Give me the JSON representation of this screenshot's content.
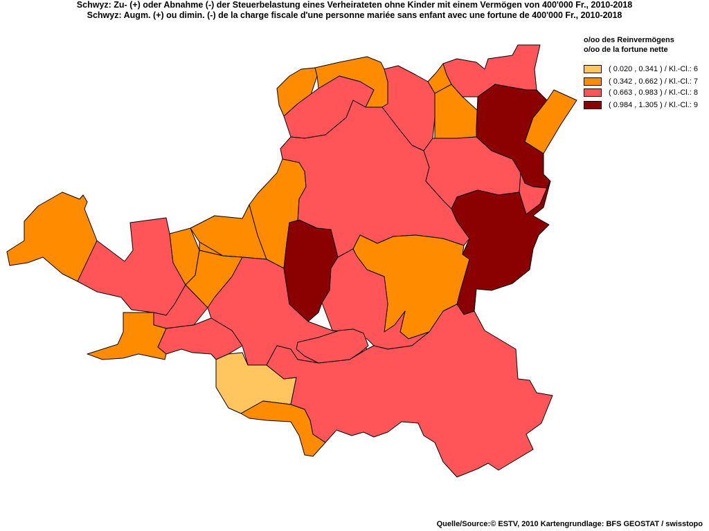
{
  "title_de": "Schwyz: Zu- (+) oder Abnahme (-) der Steuerbelastung  eines Verheirateten ohne Kinder mit einem Vermögen von 400'000 Fr., 2010-2018",
  "title_fr": "Schwyz: Augm. (+) ou dimin. (-) de la charge fiscale d'une personne mariée sans enfant avec une fortune de 400'000 Fr., 2010-2018",
  "legend": {
    "heading_de": "o/oo des Reinvermögens",
    "heading_fr": "o/oo de la fortune nette",
    "classes": [
      {
        "label": "( 0.020 , 0.341 ) / Kl.-Cl.: 6",
        "color": "#FFC55E"
      },
      {
        "label": "( 0.342 , 0.662 ) / Kl.-Cl.: 7",
        "color": "#FF8C00"
      },
      {
        "label": "( 0.663 , 0.983 ) / Kl.-Cl.: 8",
        "color": "#FF5558"
      },
      {
        "label": "( 0.984 , 1.305 ) / Kl.-Cl.: 9",
        "color": "#8B0000"
      }
    ]
  },
  "source": "Quelle/Source:© ESTV, 2010 Kartengrundlage: BFS GEOSTAT / swisstopo",
  "regions": [
    {
      "name": "far-west",
      "class": 7
    },
    {
      "name": "west-a",
      "class": 8
    },
    {
      "name": "west-b",
      "class": 7
    },
    {
      "name": "west-c",
      "class": 7
    },
    {
      "name": "west-d",
      "class": 8
    },
    {
      "name": "west-e",
      "class": 8
    },
    {
      "name": "southwest",
      "class": 7
    },
    {
      "name": "south-yellow",
      "class": 6
    },
    {
      "name": "south-orange",
      "class": 7
    },
    {
      "name": "center-west",
      "class": 8
    },
    {
      "name": "north-strip",
      "class": 7
    },
    {
      "name": "center-north",
      "class": 7
    },
    {
      "name": "center-small",
      "class": 7
    },
    {
      "name": "center-dark",
      "class": 9
    },
    {
      "name": "north-a",
      "class": 7
    },
    {
      "name": "north-b",
      "class": 7
    },
    {
      "name": "north-c",
      "class": 8
    },
    {
      "name": "main",
      "class": 8
    },
    {
      "name": "north-d",
      "class": 8
    },
    {
      "name": "north-e",
      "class": 7
    },
    {
      "name": "north-f",
      "class": 7
    },
    {
      "name": "north-g",
      "class": 8
    },
    {
      "name": "north-h",
      "class": 8
    },
    {
      "name": "east-dark-north",
      "class": 9
    },
    {
      "name": "east-orange",
      "class": 7
    },
    {
      "name": "east-pink",
      "class": 8
    },
    {
      "name": "east-dark-south",
      "class": 9
    },
    {
      "name": "center-orange",
      "class": 7
    },
    {
      "name": "center-pink",
      "class": 8
    },
    {
      "name": "south-big",
      "class": 8
    },
    {
      "name": "south-center",
      "class": 8
    }
  ]
}
